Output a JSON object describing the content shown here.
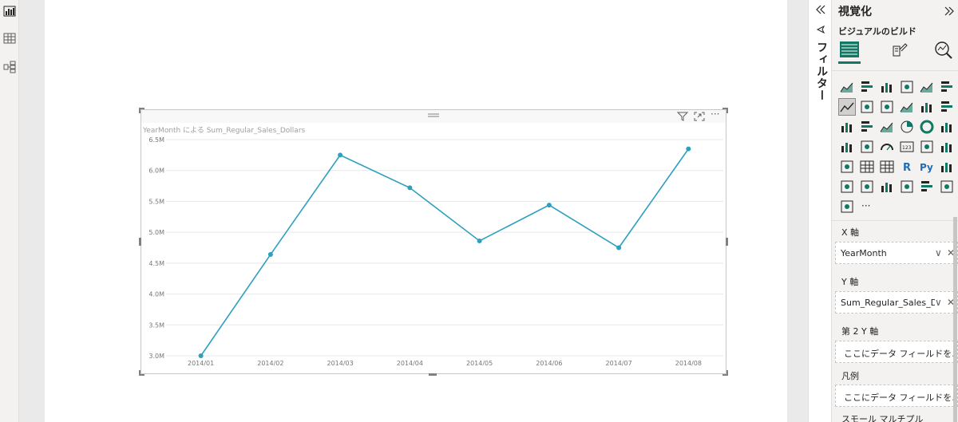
{
  "filter_pane": {
    "label": "フィルター",
    "collapse_icon": "double-chevron-left"
  },
  "viz_pane": {
    "title": "視覚化",
    "expand_icon": "double-chevron-right",
    "subtitle": "ビジュアルのビルド",
    "tabs": [
      "build-visual-icon",
      "format-visual-icon",
      "analytics-icon"
    ],
    "accent": "#117865",
    "more_label": "···"
  },
  "wells": {
    "x_axis": {
      "label": "X 軸",
      "value": "YearMonth"
    },
    "y_axis": {
      "label": "Y 軸",
      "value": "Sum_Regular_Sales_D..."
    },
    "y2_axis": {
      "label": "第 2 Y 軸",
      "placeholder": "ここにデータ フィールドを..."
    },
    "legend": {
      "label": "凡例",
      "placeholder": "ここにデータ フィールドを..."
    },
    "small_multiples": {
      "label": "スモール マルチプル"
    }
  },
  "visual": {
    "title": "YearMonth による Sum_Regular_Sales_Dollars",
    "line_color": "#2da0be"
  },
  "chart_data": {
    "type": "line",
    "title": "YearMonth による Sum_Regular_Sales_Dollars",
    "xlabel": "",
    "ylabel": "",
    "categories": [
      "2014/01",
      "2014/02",
      "2014/03",
      "2014/04",
      "2014/05",
      "2014/06",
      "2014/07",
      "2014/08"
    ],
    "values": [
      3.0,
      4.64,
      6.25,
      5.72,
      4.86,
      5.44,
      4.75,
      6.35
    ],
    "unit_suffix": "M",
    "ylim": [
      3.0,
      6.5
    ],
    "y_ticks": [
      "3.0M",
      "3.5M",
      "4.0M",
      "4.5M",
      "5.0M",
      "5.5M",
      "6.0M",
      "6.5M"
    ],
    "grid": true
  }
}
